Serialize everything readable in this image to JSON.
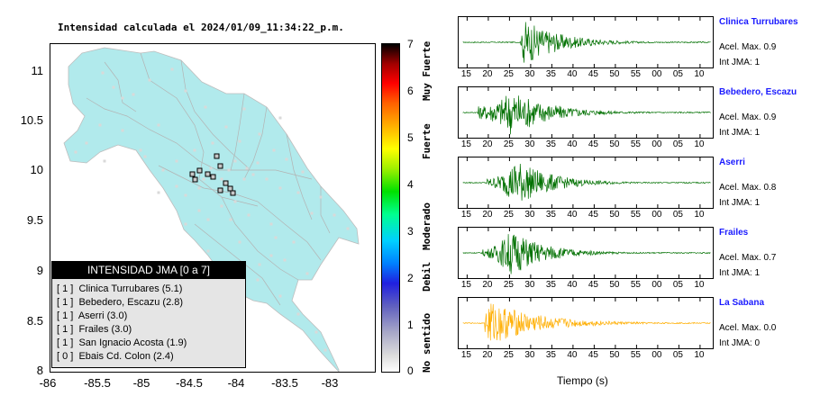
{
  "title": "Intensidad calculada el 2024/01/09_11:34:22_p.m.",
  "map": {
    "lat_ticks": [
      "11",
      "10.5",
      "10",
      "9.5",
      "9",
      "8.5",
      "8"
    ],
    "lon_ticks": [
      "-86",
      "-85.5",
      "-85",
      "-84.5",
      "-84",
      "-83.5",
      "-83"
    ],
    "land_color": "#b1eaec",
    "station_color": "#d9d9d9"
  },
  "legend": {
    "title": "INTENSIDAD JMA [0 a 7]",
    "items": [
      "[ 1 ]  Clinica Turrubares (5.1)",
      "[ 1 ]  Bebedero, Escazu (2.8)",
      "[ 1 ]  Aserri (3.0)",
      "[ 1 ]  Frailes (3.0)",
      "[ 1 ]  San Ignacio Acosta (1.9)",
      "[ 0 ]  Ebais Cd. Colon (2.4)"
    ]
  },
  "colorbar": {
    "ticks": [
      "7",
      "6",
      "5",
      "4",
      "3",
      "2",
      "1",
      "0"
    ],
    "labels": [
      "Muy Fuerte",
      "Fuerte",
      "Moderado",
      "Debil",
      "No sentido"
    ]
  },
  "waveforms": {
    "x_ticks": [
      "15",
      "20",
      "25",
      "30",
      "35",
      "40",
      "45",
      "50",
      "55",
      "00",
      "05",
      "10"
    ],
    "xlabel": "Tiempo (s)",
    "stations": [
      {
        "name": "Clinica Turrubares",
        "acel": "Acel. Max. 0.9",
        "int": "Int JMA: 1",
        "color": "#007000",
        "onset": 27.5,
        "peak": 28.3,
        "amp": 1.0,
        "coda": 0.55,
        "pre": 0.12
      },
      {
        "name": "Bebedero, Escazu",
        "acel": "Acel. Max. 0.9",
        "int": "Int JMA: 1",
        "color": "#007000",
        "onset": 17.5,
        "peak": 25.5,
        "amp": 1.0,
        "coda": 0.6,
        "pre": 0.55
      },
      {
        "name": "Aserri",
        "acel": "Acel. Max. 0.8",
        "int": "Int JMA: 1",
        "color": "#007000",
        "onset": 19.5,
        "peak": 26.7,
        "amp": 1.0,
        "coda": 0.5,
        "pre": 0.35
      },
      {
        "name": "Frailes",
        "acel": "Acel. Max. 0.7",
        "int": "Int JMA: 1",
        "color": "#007000",
        "onset": 18.5,
        "peak": 25.3,
        "amp": 1.0,
        "coda": 0.5,
        "pre": 0.3
      },
      {
        "name": "La Sabana",
        "acel": "Acel. Max. 0.0",
        "int": "Int JMA: 0",
        "color": "#ffae00",
        "onset": 19.2,
        "peak": 19.8,
        "amp": 1.0,
        "coda": 0.85,
        "pre": 0.8
      }
    ]
  },
  "chart_data": [
    {
      "type": "heatmap",
      "title": "Intensidad calculada el 2024/01/09_11:34:22_p.m.",
      "x": {
        "ticks": [
          -86,
          -85.5,
          -85,
          -84.5,
          -84,
          -83.5,
          -83
        ],
        "range": [
          -86,
          -82.5
        ]
      },
      "y": {
        "ticks": [
          8,
          8.5,
          9,
          9.5,
          10,
          10.5,
          11
        ],
        "range": [
          8,
          11.3
        ]
      },
      "legend_placement": "bottom-left",
      "colorbar": {
        "range": [
          0,
          7
        ],
        "labels": [
          "No sentido",
          "Debil",
          "Moderado",
          "Fuerte",
          "Muy Fuerte"
        ]
      }
    },
    {
      "type": "line",
      "xlabel": "Tiempo (s)",
      "x_ticks": [
        "15",
        "20",
        "25",
        "30",
        "35",
        "40",
        "45",
        "50",
        "55",
        "00",
        "05",
        "10"
      ],
      "series": [
        {
          "name": "Clinica Turrubares",
          "acel_max": 0.9,
          "int_jma": 1
        },
        {
          "name": "Bebedero, Escazu",
          "acel_max": 0.9,
          "int_jma": 1
        },
        {
          "name": "Aserri",
          "acel_max": 0.8,
          "int_jma": 1
        },
        {
          "name": "Frailes",
          "acel_max": 0.7,
          "int_jma": 1
        },
        {
          "name": "La Sabana",
          "acel_max": 0.0,
          "int_jma": 0
        }
      ]
    }
  ]
}
